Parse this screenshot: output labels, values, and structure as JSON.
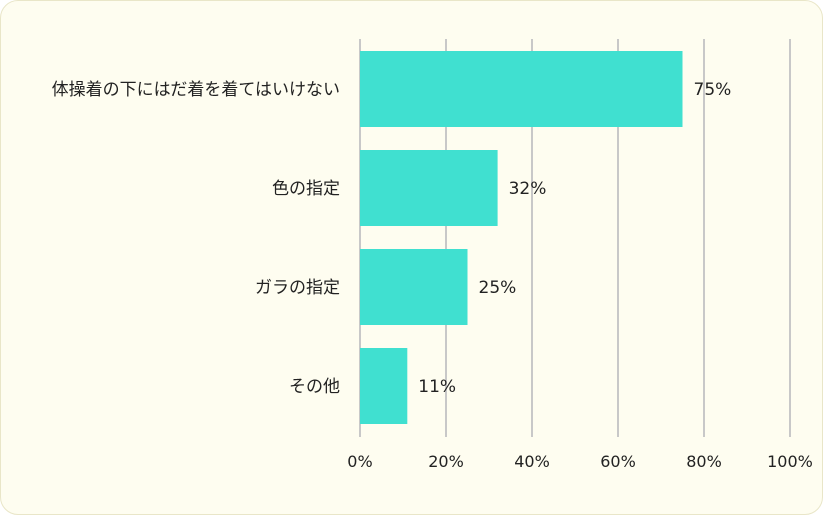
{
  "chart_data": {
    "type": "bar",
    "orientation": "horizontal",
    "categories": [
      "体操着の下にはだ着を着てはいけない",
      "色の指定",
      "ガラの指定",
      "その他"
    ],
    "values": [
      75,
      32,
      25,
      11
    ],
    "data_labels": [
      "75%",
      "32%",
      "25%",
      "11%"
    ],
    "xlim": [
      0,
      100
    ],
    "x_ticks": [
      0,
      20,
      40,
      60,
      80,
      100
    ],
    "x_tick_labels": [
      "0%",
      "20%",
      "40%",
      "60%",
      "80%",
      "100%"
    ],
    "grid": "vertical",
    "legend": "none",
    "bar_color": "#40e0d0",
    "grid_color": "#c8c8c8",
    "background_color": "#fefdf0"
  }
}
